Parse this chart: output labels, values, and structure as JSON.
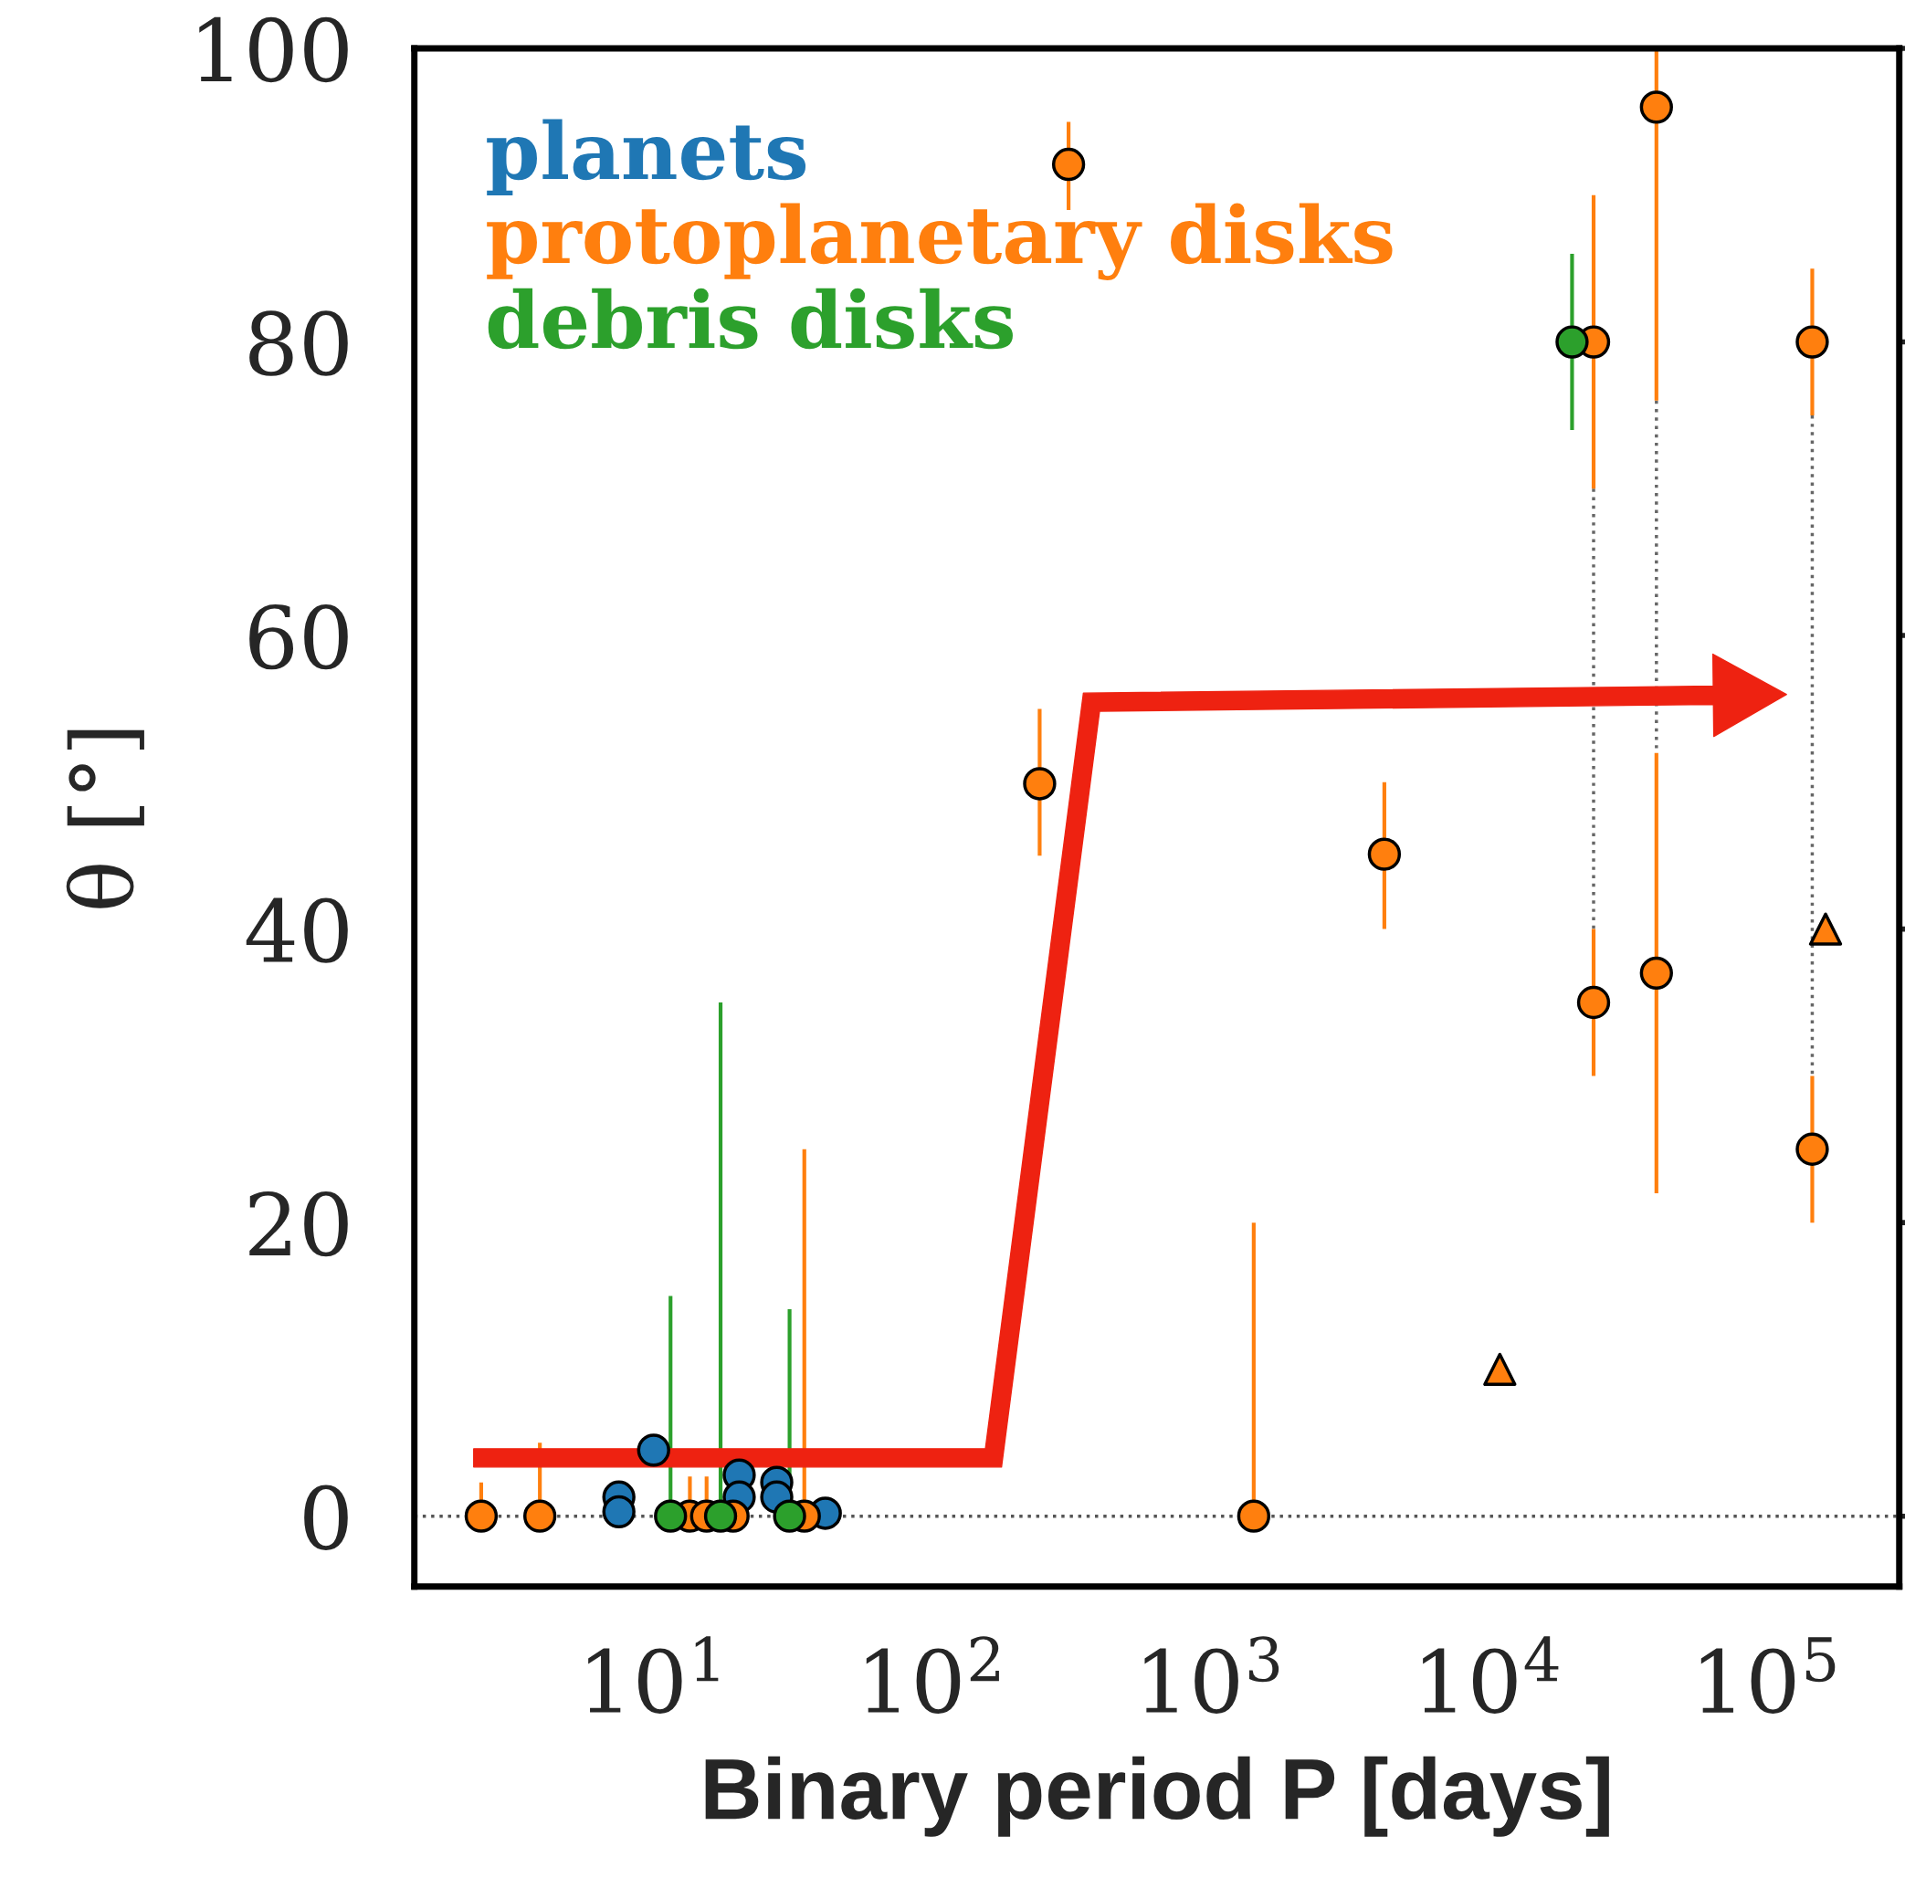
{
  "chart_data": {
    "type": "scatter",
    "xlabel": "Binary period P [days]",
    "ylabel": "θ [°]",
    "log": "x",
    "xlim": [
      1.38,
      300000
    ],
    "ylim": [
      -4.8,
      100
    ],
    "xticks": [
      {
        "value": 10,
        "label": "10$^{1}$"
      },
      {
        "value": 100,
        "label": "10$^{2}$"
      },
      {
        "value": 1000,
        "label": "10$^{3}$"
      },
      {
        "value": 10000,
        "label": "10$^{4}$"
      },
      {
        "value": 100000,
        "label": "10$^{5}$"
      }
    ],
    "yticks": [
      0,
      20,
      40,
      60,
      80,
      100
    ],
    "grid": false,
    "legend": "top left",
    "ref_lines": [
      {
        "axis": "y",
        "value": 0,
        "color": "#555555",
        "line_style": "dotted"
      }
    ],
    "series": [
      {
        "name": "planets",
        "color": "#1f77b4",
        "marker": "circle",
        "x": [
          7.5,
          7.5,
          10,
          20.3,
          20.3,
          27.7,
          27.7,
          41.4
        ],
        "values": [
          1.3,
          0.3,
          4.5,
          2.8,
          1.3,
          2.3,
          1.3,
          0.2
        ]
      },
      {
        "name": "protoplanetary disks",
        "color": "#ff7f0e",
        "marker": "circle",
        "x": [
          2.4,
          3.9,
          13.5,
          15.5,
          19.3,
          34.8,
          244,
          310,
          1435,
          4230,
          23900,
          23900,
          40200,
          40200,
          146000,
          146000
        ],
        "values": [
          0,
          0,
          0,
          0,
          0,
          0,
          49.9,
          92.1,
          0,
          45.1,
          80,
          35,
          96,
          37,
          80,
          25
        ],
        "errors": [
          [
            0,
            2.3
          ],
          [
            0,
            5
          ],
          [
            0,
            2.7
          ],
          [
            0,
            2.7
          ],
          null,
          [
            0,
            25
          ],
          [
            45,
            55
          ],
          [
            89,
            95
          ],
          [
            0,
            20
          ],
          [
            40,
            50
          ],
          [
            70,
            90
          ],
          [
            30,
            40
          ],
          [
            76,
            100
          ],
          [
            22,
            52
          ],
          [
            75,
            85
          ],
          [
            20,
            30
          ]
        ]
      },
      {
        "name": "debris disks",
        "color": "#2ca02c",
        "marker": "circle",
        "x": [
          11.5,
          17.4,
          30.8,
          20000
        ],
        "values": [
          0,
          0,
          0,
          80
        ],
        "errors": [
          [
            0,
            15
          ],
          [
            0,
            35
          ],
          [
            0,
            14.1
          ],
          [
            74,
            86
          ]
        ]
      },
      {
        "color": "#ff7f0e",
        "marker": "triangle",
        "x": [
          11000,
          163000
        ],
        "values": [
          10,
          40
        ]
      },
      {
        "type": "line",
        "color": "#666666",
        "line_style": "dotted",
        "x": [
          23900,
          23900
        ],
        "values": [
          70,
          40
        ]
      },
      {
        "type": "line",
        "color": "#666666",
        "line_style": "dotted",
        "x": [
          40200,
          40200
        ],
        "values": [
          76,
          52
        ]
      },
      {
        "type": "line",
        "color": "#666666",
        "line_style": "dotted",
        "x": [
          146000,
          146000
        ],
        "values": [
          75,
          30
        ]
      }
    ]
  }
}
